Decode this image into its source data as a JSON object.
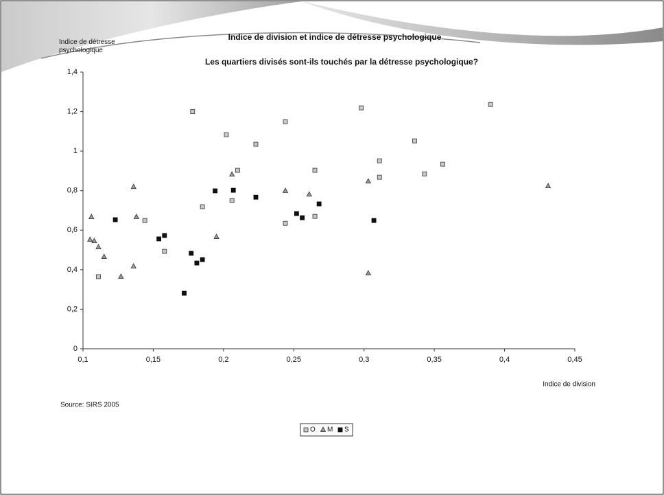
{
  "chart_data": {
    "type": "scatter",
    "title": "Indice de division et indice de détresse psychologique",
    "subtitle": "Les quartiers divisés sont-ils touchés par la détresse psychologique?",
    "y_label": "Indice de détresse psychologique",
    "x_label": "Indice de division",
    "source": "Source: SIRS 2005",
    "xlim": [
      0.1,
      0.45
    ],
    "xticks": [
      {
        "value": 0.1,
        "label": "0,1"
      },
      {
        "value": 0.15,
        "label": "0,15"
      },
      {
        "value": 0.2,
        "label": "0,2"
      },
      {
        "value": 0.25,
        "label": "0,25"
      },
      {
        "value": 0.3,
        "label": "0,3"
      },
      {
        "value": 0.35,
        "label": "0,35"
      },
      {
        "value": 0.4,
        "label": "0,4"
      },
      {
        "value": 0.45,
        "label": "0,45"
      }
    ],
    "ylim": [
      0,
      1.4
    ],
    "yticks": [
      0,
      {
        "value": 0.2,
        "label": "0,2"
      },
      {
        "value": 0.4,
        "label": "0,4"
      },
      {
        "value": 0.6,
        "label": "0,6"
      },
      {
        "value": 0.8,
        "label": "0,8"
      },
      1,
      {
        "value": 1.2,
        "label": "1,2"
      },
      {
        "value": 1.4,
        "label": "1,4"
      }
    ],
    "grid": false,
    "legend": "bottom",
    "series": [
      {
        "name": "O",
        "color": "#c8c8c8",
        "marker": "square",
        "x": [
          0.111,
          0.144,
          0.158,
          0.178,
          0.185,
          0.202,
          0.206,
          0.21,
          0.223,
          0.244,
          0.244,
          0.265,
          0.265,
          0.298,
          0.311,
          0.311,
          0.336,
          0.343,
          0.356,
          0.39
        ],
        "values": [
          0.365,
          0.649,
          0.493,
          1.2,
          0.719,
          1.083,
          0.75,
          0.903,
          1.035,
          1.149,
          0.635,
          0.903,
          0.67,
          1.219,
          0.951,
          0.868,
          1.052,
          0.885,
          0.934,
          1.236
        ]
      },
      {
        "name": "M",
        "color": "#9a9a9a",
        "marker": "triangle",
        "x": [
          0.106,
          0.105,
          0.108,
          0.111,
          0.115,
          0.127,
          0.136,
          0.136,
          0.138,
          0.195,
          0.206,
          0.244,
          0.261,
          0.303,
          0.303,
          0.431
        ],
        "values": [
          0.667,
          0.552,
          0.545,
          0.514,
          0.465,
          0.365,
          0.819,
          0.417,
          0.667,
          0.566,
          0.882,
          0.799,
          0.781,
          0.847,
          0.382,
          0.823
        ]
      },
      {
        "name": "S",
        "color": "#111111",
        "marker": "square",
        "x": [
          0.123,
          0.154,
          0.158,
          0.172,
          0.177,
          0.181,
          0.185,
          0.194,
          0.207,
          0.223,
          0.252,
          0.256,
          0.268,
          0.307
        ],
        "values": [
          0.653,
          0.556,
          0.573,
          0.281,
          0.483,
          0.434,
          0.451,
          0.799,
          0.802,
          0.767,
          0.684,
          0.663,
          0.733,
          0.649
        ]
      }
    ]
  }
}
